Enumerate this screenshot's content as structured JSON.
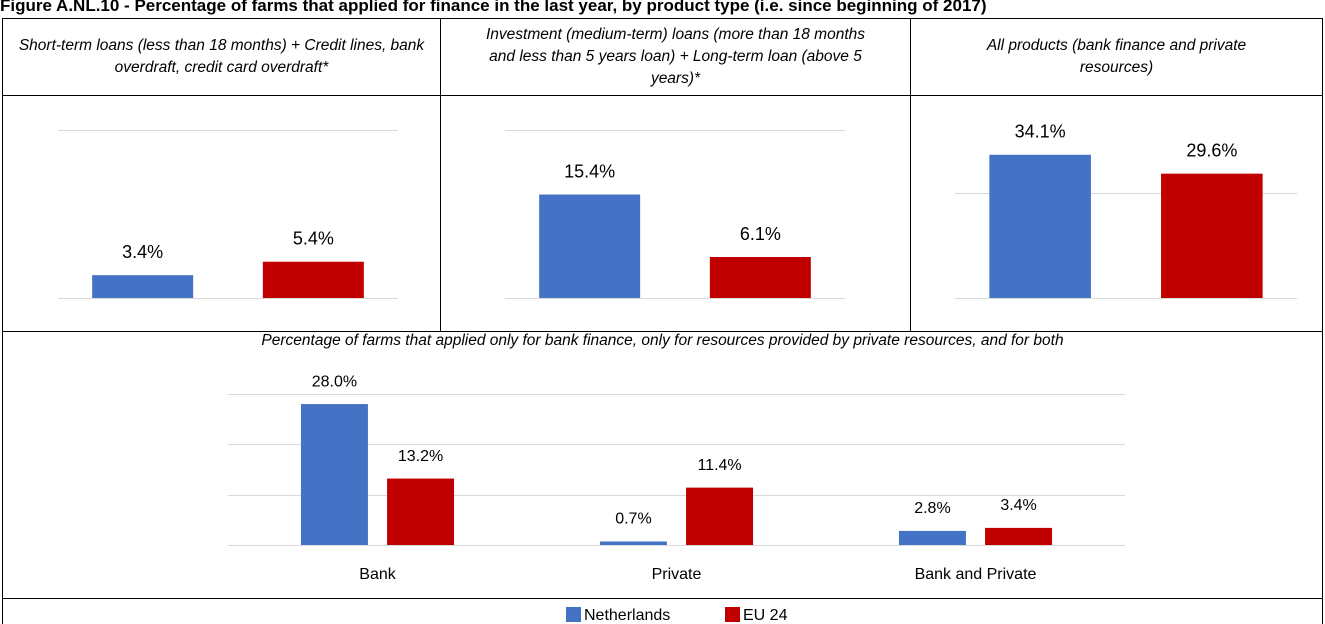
{
  "title": "Figure A.NL.10 - Percentage of farms that applied for finance in the last year, by product type (i.e. since beginning of 2017)",
  "chart_data": [
    {
      "type": "bar",
      "title": "Short-term loans (less than 18 months) + Credit lines, bank overdraft, credit card overdraft*",
      "categories": [
        null
      ],
      "series": [
        {
          "name": "Netherlands",
          "color": "#4472c4",
          "values": [
            3.4
          ],
          "value_labels": [
            "3.4%"
          ]
        },
        {
          "name": "EU 24",
          "color": "#c00000",
          "values": [
            5.4
          ],
          "value_labels": [
            "5.4%"
          ]
        }
      ],
      "ylim": [
        0,
        25
      ],
      "yticks": [
        0,
        25
      ],
      "grid": true
    },
    {
      "type": "bar",
      "title": "Investment (medium-term) loans (more than 18 months and less than 5 years loan) + Long-term loan (above 5 years)*",
      "categories": [
        null
      ],
      "series": [
        {
          "name": "Netherlands",
          "color": "#4472c4",
          "values": [
            15.4
          ],
          "value_labels": [
            "15.4%"
          ]
        },
        {
          "name": "EU 24",
          "color": "#c00000",
          "values": [
            6.1
          ],
          "value_labels": [
            "6.1%"
          ]
        }
      ],
      "ylim": [
        0,
        25
      ],
      "yticks": [
        0,
        25
      ],
      "grid": true
    },
    {
      "type": "bar",
      "title": "All products (bank finance and private resources)",
      "categories": [
        null
      ],
      "series": [
        {
          "name": "Netherlands",
          "color": "#4472c4",
          "values": [
            34.1
          ],
          "value_labels": [
            "34.1%"
          ]
        },
        {
          "name": "EU 24",
          "color": "#c00000",
          "values": [
            29.6
          ],
          "value_labels": [
            "29.6%"
          ]
        }
      ],
      "ylim": [
        0,
        40
      ],
      "yticks": [
        0,
        25
      ],
      "grid": true
    },
    {
      "type": "bar",
      "title": "Percentage of farms that applied only for bank finance, only for resources provided by private resources, and for both",
      "categories": [
        "Bank",
        "Private",
        "Bank and Private"
      ],
      "series": [
        {
          "name": "Netherlands",
          "color": "#4472c4",
          "values": [
            28.0,
            0.7,
            2.8
          ],
          "value_labels": [
            "28.0%",
            "0.7%",
            "2.8%"
          ]
        },
        {
          "name": "EU 24",
          "color": "#c00000",
          "values": [
            13.2,
            11.4,
            3.4
          ],
          "value_labels": [
            "13.2%",
            "11.4%",
            "3.4%"
          ]
        }
      ],
      "ylim": [
        0,
        30
      ],
      "yticks": [
        0,
        10,
        20,
        30
      ],
      "grid": true,
      "legend": "bottom"
    }
  ]
}
